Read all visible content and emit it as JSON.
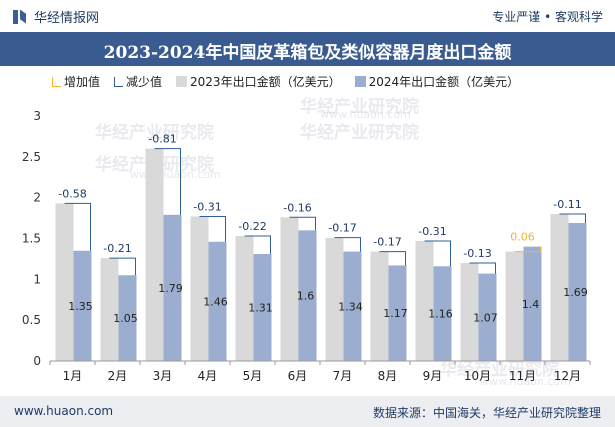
{
  "header": {
    "brand": "华经情报网",
    "slogan": "专业严谨 • 客观科学"
  },
  "title": "2023-2024年中国皮革箱包及类似容器月度出口金额",
  "legend": {
    "increase": "增加值",
    "decrease": "减少值",
    "s2023": "2023年出口金额（亿美元）",
    "s2024": "2024年出口金额（亿美元）"
  },
  "watermark": {
    "text": "华经产业研究院",
    "url": "www.huaon.com"
  },
  "footer": {
    "website": "www.huaon.com",
    "source": "数据来源：中国海关，华经产业研究院整理"
  },
  "colors": {
    "bar2023": "#d9d9d9",
    "bar2024": "#9caed0",
    "increase": "#f2b632",
    "decrease": "#2e5f97",
    "title_bg": "#3a5b8f"
  },
  "chart_data": {
    "type": "bar",
    "categories": [
      "1月",
      "2月",
      "3月",
      "4月",
      "5月",
      "6月",
      "7月",
      "8月",
      "9月",
      "10月",
      "11月",
      "12月"
    ],
    "series": [
      {
        "name": "2023年出口金额（亿美元）",
        "values": [
          1.93,
          1.26,
          2.6,
          1.77,
          1.53,
          1.76,
          1.51,
          1.34,
          1.47,
          1.2,
          1.34,
          1.8
        ]
      },
      {
        "name": "2024年出口金额（亿美元）",
        "values": [
          1.35,
          1.05,
          1.79,
          1.46,
          1.31,
          1.6,
          1.34,
          1.17,
          1.16,
          1.07,
          1.4,
          1.69
        ]
      }
    ],
    "differences": [
      "-0.58",
      "-0.21",
      "-0.81",
      "-0.31",
      "-0.22",
      "-0.16",
      "-0.17",
      "-0.17",
      "-0.31",
      "-0.13",
      "0.06",
      "-0.11"
    ],
    "ylim": [
      0,
      3
    ],
    "yticks": [
      "0",
      "0.5",
      "1",
      "1.5",
      "2",
      "2.5",
      "3"
    ],
    "grid": false,
    "legend_position": "top-left"
  }
}
